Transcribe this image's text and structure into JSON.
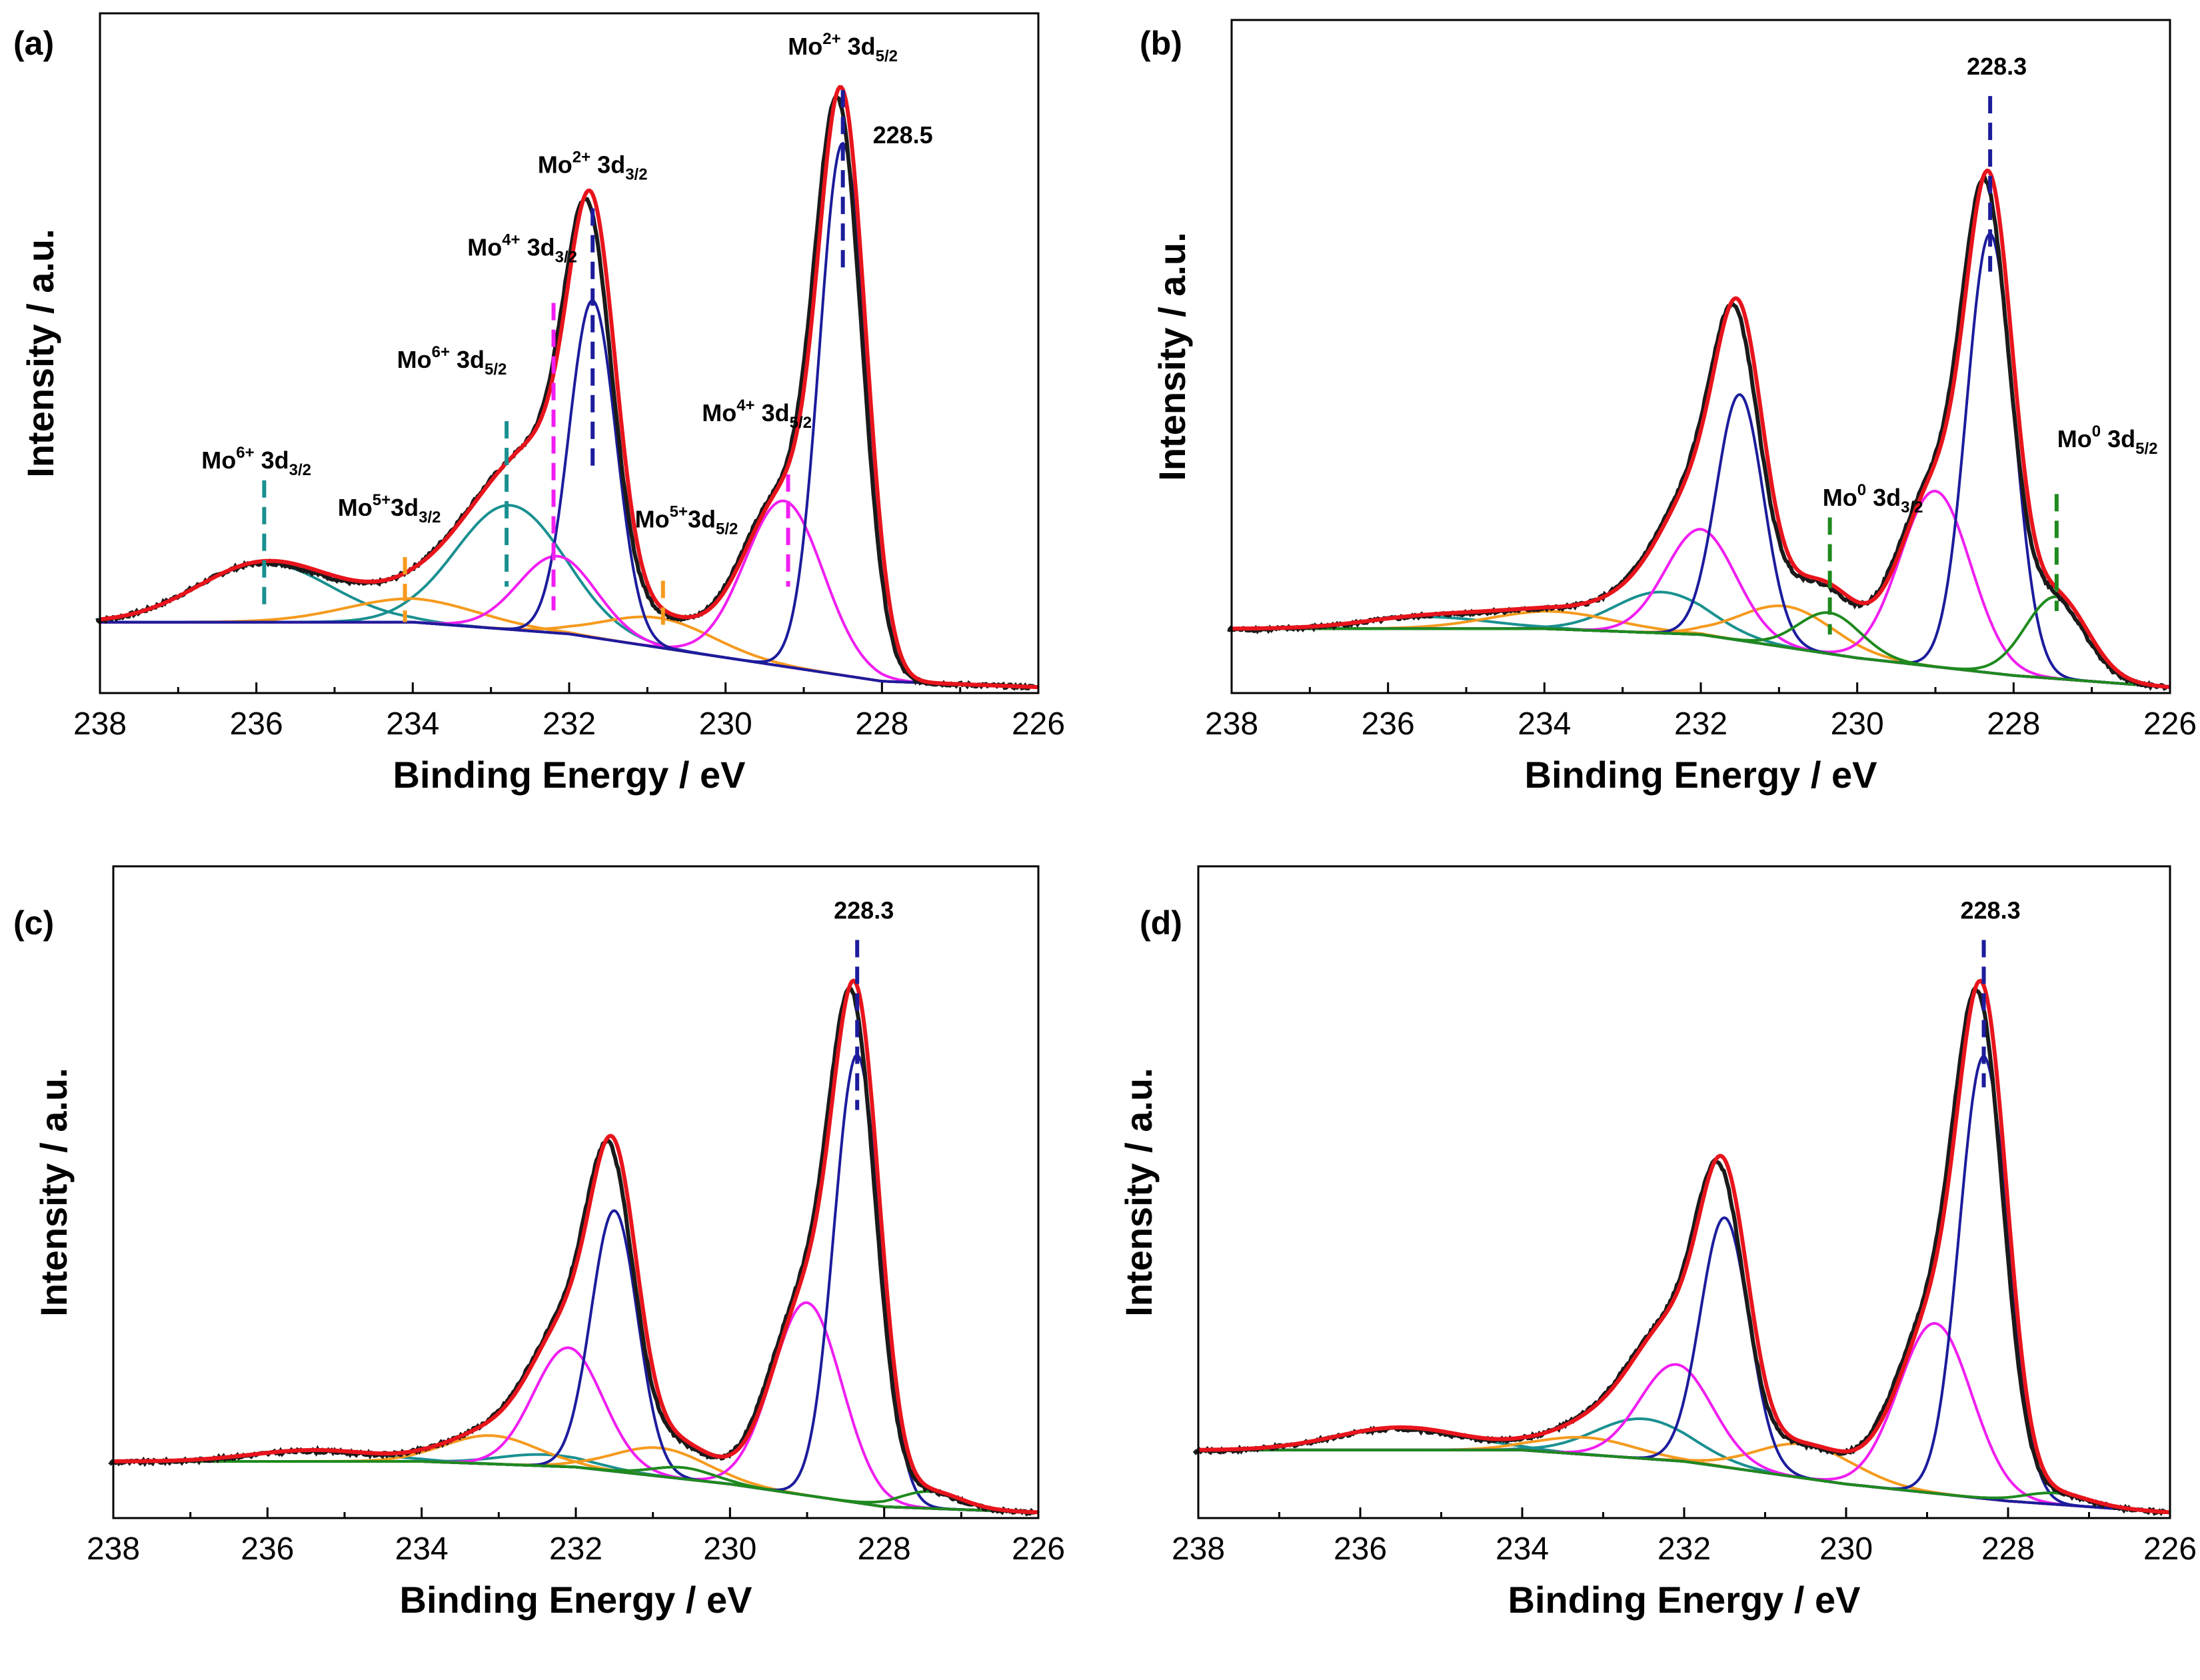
{
  "colors": {
    "raw": "#1a1a1a",
    "envelope": "#e8141c",
    "mo2": "#1c1c9c",
    "mo4": "#f01ef0",
    "mo5": "#f59a1e",
    "mo6": "#1a9090",
    "mo0": "#1e8a1e",
    "background": "#f59a1e"
  },
  "chart_data": [
    {
      "type": "line",
      "panel": "(a)",
      "xlabel": "Binding Energy / eV",
      "ylabel": "Intensity / a.u.",
      "xlim": [
        238,
        226
      ],
      "xticks": [
        "238",
        "236",
        "234",
        "232",
        "230",
        "228",
        "226"
      ],
      "y_units": "arbitrary (normalized)",
      "baseline": {
        "color": "background",
        "points": [
          [
            238,
            0.12
          ],
          [
            234,
            0.12
          ],
          [
            232,
            0.1
          ],
          [
            230,
            0.06
          ],
          [
            228,
            0.02
          ],
          [
            226,
            0.01
          ]
        ]
      },
      "components": [
        {
          "name": "Mo6+ 3d3/2",
          "color": "mo6",
          "center": 235.9,
          "height": 0.1,
          "width": 0.85
        },
        {
          "name": "Mo6+ 3d5/2",
          "color": "mo6",
          "center": 232.75,
          "height": 0.21,
          "width": 0.7
        },
        {
          "name": "Mo5+ 3d3/2",
          "color": "mo5",
          "center": 234.0,
          "height": 0.04,
          "width": 0.85
        },
        {
          "name": "Mo5+ 3d5/2",
          "color": "mo5",
          "center": 230.85,
          "height": 0.05,
          "width": 0.7
        },
        {
          "name": "Mo4+ 3d3/2",
          "color": "mo4",
          "center": 232.15,
          "height": 0.13,
          "width": 0.5
        },
        {
          "name": "Mo4+ 3d5/2",
          "color": "mo4",
          "center": 229.25,
          "height": 0.28,
          "width": 0.5
        },
        {
          "name": "Mo2+ 3d3/2",
          "color": "mo2",
          "center": 231.7,
          "height": 0.57,
          "width": 0.3
        },
        {
          "name": "Mo2+ 3d5/2",
          "color": "mo2",
          "center": 228.5,
          "height": 0.9,
          "width": 0.3
        }
      ],
      "peak_label": "228.5",
      "annotations": [
        {
          "base": "Mo",
          "sup": "2+",
          "mid": " 3d",
          "sub": "5/2",
          "x": 228.5,
          "y": 1.08
        },
        {
          "base": "Mo",
          "sup": "2+",
          "mid": " 3d",
          "sub": "3/2",
          "x": 231.7,
          "y": 0.88
        },
        {
          "base": "Mo",
          "sup": "4+",
          "mid": " 3d",
          "sub": "3/2",
          "x": 232.6,
          "y": 0.74
        },
        {
          "base": "Mo",
          "sup": "6+",
          "mid": " 3d",
          "sub": "5/2",
          "x": 233.5,
          "y": 0.55
        },
        {
          "base": "Mo",
          "sup": "4+",
          "mid": " 3d",
          "sub": "5/2",
          "x": 229.6,
          "y": 0.46
        },
        {
          "base": "Mo",
          "sup": "6+",
          "mid": " 3d",
          "sub": "3/2",
          "x": 236.0,
          "y": 0.38
        },
        {
          "base": "Mo",
          "sup": "5+",
          "mid": "3d",
          "sub": "3/2",
          "x": 234.3,
          "y": 0.3
        },
        {
          "base": "Mo",
          "sup": "5+",
          "mid": "3d",
          "sub": "5/2",
          "x": 230.5,
          "y": 0.28
        }
      ],
      "markers": [
        {
          "x": 228.5,
          "color": "mo2",
          "y_top": 1.02,
          "y_bot": 0.72
        },
        {
          "x": 231.7,
          "color": "mo2",
          "y_top": 0.82,
          "y_bot": 0.38
        },
        {
          "x": 232.2,
          "color": "mo4",
          "y_top": 0.66,
          "y_bot": 0.14
        },
        {
          "x": 229.2,
          "color": "mo4",
          "y_top": 0.37,
          "y_bot": 0.18
        },
        {
          "x": 232.8,
          "color": "mo6",
          "y_top": 0.46,
          "y_bot": 0.18
        },
        {
          "x": 235.9,
          "color": "mo6",
          "y_top": 0.36,
          "y_bot": 0.15
        },
        {
          "x": 234.1,
          "color": "mo5",
          "y_top": 0.23,
          "y_bot": 0.12
        },
        {
          "x": 230.8,
          "color": "mo5",
          "y_top": 0.19,
          "y_bot": 0.11
        }
      ]
    },
    {
      "type": "line",
      "panel": "(b)",
      "xlabel": "Binding Energy / eV",
      "ylabel": "Intensity / a.u.",
      "xlim": [
        238,
        226
      ],
      "xticks": [
        "238",
        "236",
        "234",
        "232",
        "230",
        "228",
        "226"
      ],
      "y_units": "arbitrary (normalized)",
      "baseline": {
        "color": "mo6",
        "points": [
          [
            238,
            0.11
          ],
          [
            234,
            0.11
          ],
          [
            232,
            0.1
          ],
          [
            230,
            0.06
          ],
          [
            228,
            0.03
          ],
          [
            226,
            0.01
          ]
        ]
      },
      "components": [
        {
          "name": "Mo6+ 3d3/2",
          "color": "mo6",
          "center": 235.5,
          "height": 0.02,
          "width": 0.8
        },
        {
          "name": "Mo6+ 3d5/2",
          "color": "mo6",
          "center": 232.5,
          "height": 0.07,
          "width": 0.6
        },
        {
          "name": "Mo5+ 3d3/2",
          "color": "mo5",
          "center": 233.9,
          "height": 0.03,
          "width": 0.8
        },
        {
          "name": "Mo5+ 3d5/2",
          "color": "mo5",
          "center": 230.9,
          "height": 0.07,
          "width": 0.6
        },
        {
          "name": "Mo4+ 3d3/2",
          "color": "mo4",
          "center": 232.0,
          "height": 0.18,
          "width": 0.45
        },
        {
          "name": "Mo4+ 3d5/2",
          "color": "mo4",
          "center": 229.0,
          "height": 0.3,
          "width": 0.45
        },
        {
          "name": "Mo2+ 3d3/2",
          "color": "mo2",
          "center": 231.5,
          "height": 0.42,
          "width": 0.3
        },
        {
          "name": "Mo2+ 3d5/2",
          "color": "mo2",
          "center": 228.3,
          "height": 0.75,
          "width": 0.3
        },
        {
          "name": "Mo0 3d3/2",
          "color": "mo0",
          "center": 230.35,
          "height": 0.07,
          "width": 0.4
        },
        {
          "name": "Mo0 3d5/2",
          "color": "mo0",
          "center": 227.45,
          "height": 0.14,
          "width": 0.4
        }
      ],
      "peak_label": "228.3",
      "annotations": [
        {
          "base": "Mo",
          "sup": "0",
          "mid": " 3d",
          "sub": "3/2",
          "x": 229.8,
          "y": 0.32
        },
        {
          "base": "Mo",
          "sup": "0",
          "mid": " 3d",
          "sub": "5/2",
          "x": 226.8,
          "y": 0.42
        }
      ],
      "markers": [
        {
          "x": 228.3,
          "color": "mo2",
          "y_top": 1.02,
          "y_bot": 0.72
        },
        {
          "x": 230.35,
          "color": "mo0",
          "y_top": 0.3,
          "y_bot": 0.1
        },
        {
          "x": 227.45,
          "color": "mo0",
          "y_top": 0.34,
          "y_bot": 0.14
        }
      ]
    },
    {
      "type": "line",
      "panel": "(c)",
      "xlabel": "Binding Energy / eV",
      "ylabel": "Intensity / a.u.",
      "xlim": [
        238,
        226
      ],
      "xticks": [
        "238",
        "236",
        "234",
        "232",
        "230",
        "228",
        "226"
      ],
      "y_units": "arbitrary (normalized)",
      "baseline": {
        "color": "mo0",
        "points": [
          [
            238,
            0.1
          ],
          [
            234,
            0.1
          ],
          [
            232,
            0.09
          ],
          [
            230,
            0.06
          ],
          [
            228,
            0.02
          ],
          [
            226,
            0.01
          ]
        ]
      },
      "components": [
        {
          "name": "Mo6+ 3d3/2",
          "color": "mo6",
          "center": 235.4,
          "height": 0.02,
          "width": 0.8
        },
        {
          "name": "Mo6+ 3d5/2",
          "color": "mo6",
          "center": 232.4,
          "height": 0.02,
          "width": 0.6
        },
        {
          "name": "Mo5+ 3d3/2",
          "color": "mo5",
          "center": 233.1,
          "height": 0.05,
          "width": 0.6
        },
        {
          "name": "Mo5+ 3d5/2",
          "color": "mo5",
          "center": 230.9,
          "height": 0.05,
          "width": 0.6
        },
        {
          "name": "Mo4+ 3d3/2",
          "color": "mo4",
          "center": 232.1,
          "height": 0.21,
          "width": 0.45
        },
        {
          "name": "Mo4+ 3d5/2",
          "color": "mo4",
          "center": 229.0,
          "height": 0.34,
          "width": 0.45
        },
        {
          "name": "Mo2+ 3d3/2",
          "color": "mo2",
          "center": 231.5,
          "height": 0.46,
          "width": 0.3
        },
        {
          "name": "Mo2+ 3d5/2",
          "color": "mo2",
          "center": 228.35,
          "height": 0.79,
          "width": 0.3
        },
        {
          "name": "Mo0 3d3/2",
          "color": "mo0",
          "center": 230.6,
          "height": 0.02,
          "width": 0.4
        },
        {
          "name": "Mo0 3d5/2",
          "color": "mo0",
          "center": 227.4,
          "height": 0.03,
          "width": 0.4
        }
      ],
      "peak_label": "228.3",
      "annotations": [],
      "markers": [
        {
          "x": 228.35,
          "color": "mo2",
          "y_top": 1.02,
          "y_bot": 0.72
        }
      ]
    },
    {
      "type": "line",
      "panel": "(d)",
      "xlabel": "Binding Energy / eV",
      "ylabel": "Intensity / a.u.",
      "xlim": [
        238,
        226
      ],
      "xticks": [
        "238",
        "236",
        "234",
        "232",
        "230",
        "228",
        "226"
      ],
      "y_units": "arbitrary (normalized)",
      "baseline": {
        "color": "mo0",
        "points": [
          [
            238,
            0.12
          ],
          [
            234,
            0.12
          ],
          [
            232,
            0.1
          ],
          [
            230,
            0.06
          ],
          [
            228,
            0.03
          ],
          [
            226,
            0.01
          ]
        ]
      },
      "components": [
        {
          "name": "Mo6+ 3d3/2",
          "color": "mo6",
          "center": 235.5,
          "height": 0.04,
          "width": 0.8
        },
        {
          "name": "Mo6+ 3d5/2",
          "color": "mo6",
          "center": 232.5,
          "height": 0.07,
          "width": 0.6
        },
        {
          "name": "Mo5+ 3d3/2",
          "color": "mo5",
          "center": 233.2,
          "height": 0.03,
          "width": 0.6
        },
        {
          "name": "Mo5+ 3d5/2",
          "color": "mo5",
          "center": 230.5,
          "height": 0.06,
          "width": 0.6
        },
        {
          "name": "Mo4+ 3d3/2",
          "color": "mo4",
          "center": 232.1,
          "height": 0.17,
          "width": 0.45
        },
        {
          "name": "Mo4+ 3d5/2",
          "color": "mo4",
          "center": 228.9,
          "height": 0.3,
          "width": 0.45
        },
        {
          "name": "Mo2+ 3d3/2",
          "color": "mo2",
          "center": 231.5,
          "height": 0.44,
          "width": 0.3
        },
        {
          "name": "Mo2+ 3d5/2",
          "color": "mo2",
          "center": 228.3,
          "height": 0.78,
          "width": 0.3
        },
        {
          "name": "Mo0 3d5/2",
          "color": "mo0",
          "center": 227.4,
          "height": 0.02,
          "width": 0.4
        }
      ],
      "peak_label": "228.3",
      "annotations": [],
      "markers": [
        {
          "x": 228.3,
          "color": "mo2",
          "y_top": 1.02,
          "y_bot": 0.76
        }
      ]
    }
  ]
}
